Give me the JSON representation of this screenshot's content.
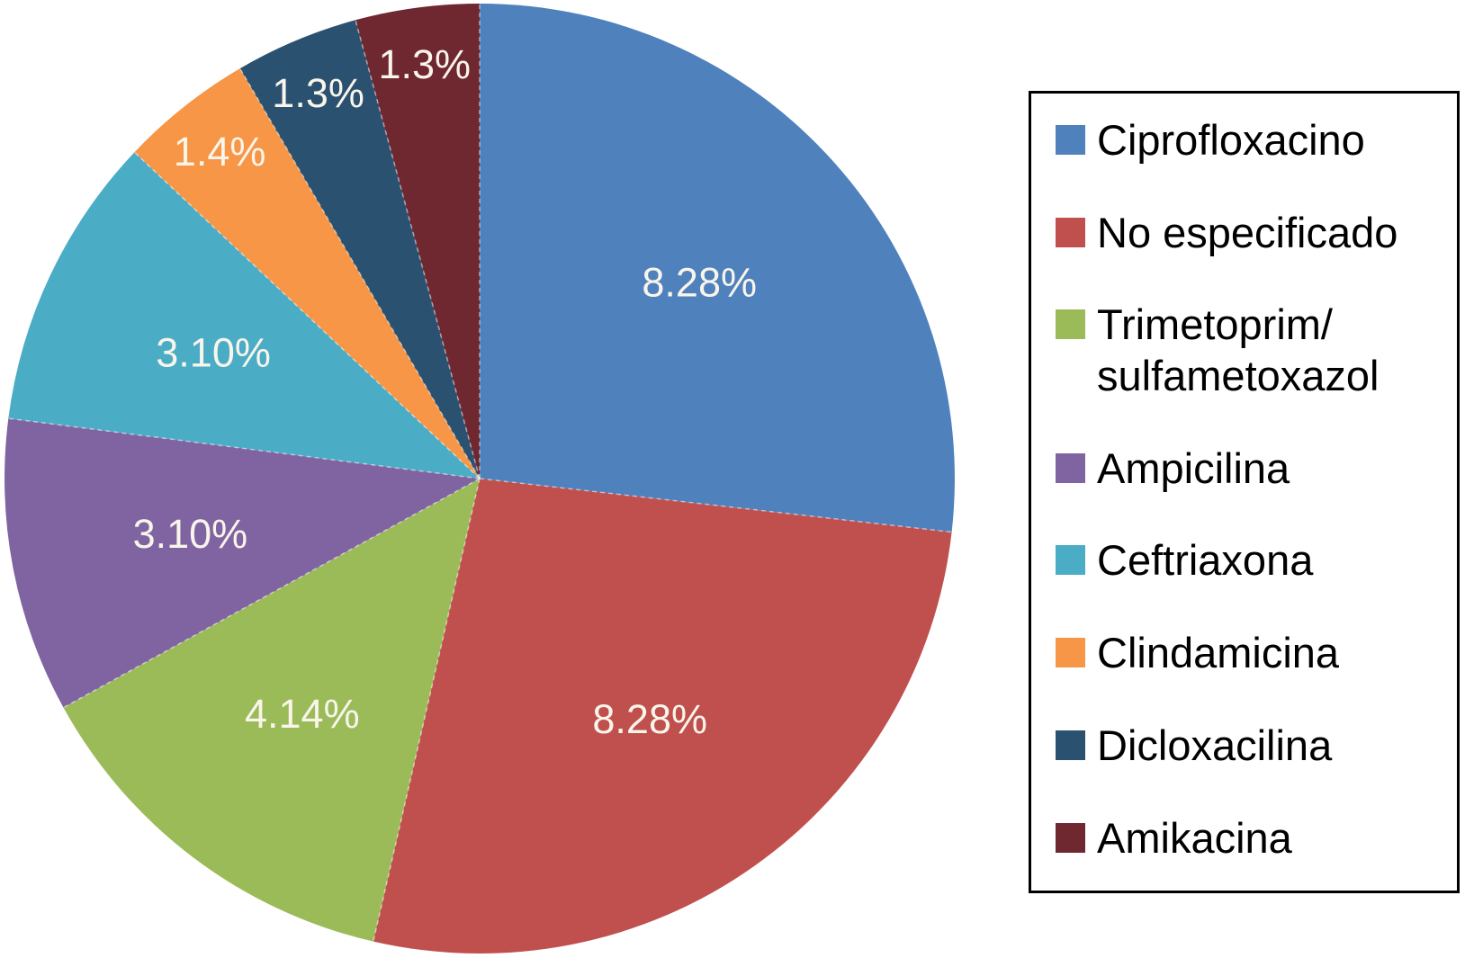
{
  "chart_data": {
    "type": "pie",
    "title": "",
    "legend_position": "right",
    "start_angle_deg": 0,
    "direction": "clockwise",
    "slice_label_color": "#F9F5EB",
    "legend_text_color": "#000000",
    "legend_border_color": "#000000",
    "separator_style": "light-dashed",
    "slices": [
      {
        "name": "Ciprofloxacino",
        "value": 8.28,
        "label": "8.28%",
        "color": "#4F81BD",
        "legend_label": "Ciprofloxacino"
      },
      {
        "name": "No especificado",
        "value": 8.28,
        "label": "8.28%",
        "color": "#C0504D",
        "legend_label": "No especificado"
      },
      {
        "name": "Trimetoprim/sulfametoxazol",
        "value": 4.14,
        "label": "4.14%",
        "color": "#9BBB59",
        "legend_label": "Trimetoprim/\nsulfametoxazol"
      },
      {
        "name": "Ampicilina",
        "value": 3.1,
        "label": "3.10%",
        "color": "#8064A2",
        "legend_label": "Ampicilina"
      },
      {
        "name": "Ceftriaxona",
        "value": 3.1,
        "label": "3.10%",
        "color": "#4BACC6",
        "legend_label": "Ceftriaxona"
      },
      {
        "name": "Clindamicina",
        "value": 1.4,
        "label": "1.4%",
        "color": "#F79646",
        "legend_label": "Clindamicina"
      },
      {
        "name": "Dicloxacilina",
        "value": 1.3,
        "label": "1.3%",
        "color": "#2B5170",
        "legend_label": "Dicloxacilina"
      },
      {
        "name": "Amikacina",
        "value": 1.3,
        "label": "1.3%",
        "color": "#6F2730",
        "legend_label": "Amikacina"
      }
    ]
  }
}
